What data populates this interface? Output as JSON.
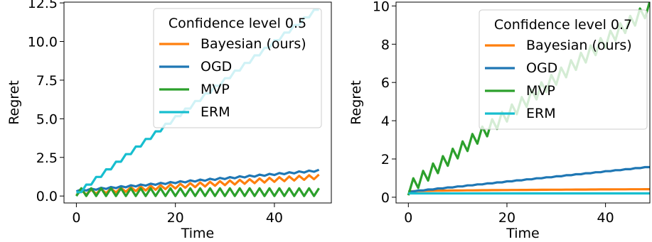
{
  "chart_data": [
    {
      "type": "line",
      "title": "",
      "xlabel": "Time",
      "ylabel": "Regret",
      "xlim": [
        -2.5,
        51.5
      ],
      "ylim": [
        -0.45,
        12.55
      ],
      "xticks": [
        0,
        20,
        40
      ],
      "xtick_labels": [
        "0",
        "20",
        "40"
      ],
      "yticks": [
        0,
        2.5,
        5,
        7.5,
        10,
        12.5
      ],
      "ytick_labels": [
        "0.0",
        "2.5",
        "5.0",
        "7.5",
        "10.0",
        "12.5"
      ],
      "grid": false,
      "legend": {
        "title": "Confidence level 0.5",
        "placement": "upper-right"
      },
      "series": [
        {
          "name": "Bayesian (ours)",
          "color": "#ff7f0e",
          "pattern": "zigzag",
          "start": 0.2,
          "end": 1.25,
          "amplitude": 0.14
        },
        {
          "name": "OGD",
          "color": "#1f77b4",
          "pattern": "zigzag",
          "start": 0.35,
          "end": 1.65,
          "amplitude": 0.05
        },
        {
          "name": "MVP",
          "color": "#2ca02c",
          "pattern": "zigzag",
          "start": 0.25,
          "end": 0.25,
          "amplitude": 0.25
        },
        {
          "name": "ERM",
          "color": "#17becf",
          "pattern": "staircase",
          "start": 0.25,
          "end": 12.3,
          "amplitude": 0
        }
      ]
    },
    {
      "type": "line",
      "title": "",
      "xlabel": "Time",
      "ylabel": "Regret",
      "xlim": [
        -2.5,
        49
      ],
      "ylim": [
        -0.3,
        10.2
      ],
      "xticks": [
        0,
        20,
        40
      ],
      "xtick_labels": [
        "0",
        "20",
        "40"
      ],
      "yticks": [
        0,
        2,
        4,
        6,
        8,
        10
      ],
      "ytick_labels": [
        "0",
        "2",
        "4",
        "6",
        "8",
        "10"
      ],
      "grid": false,
      "legend": {
        "title": "Confidence level 0.7",
        "placement": "upper-right"
      },
      "series": [
        {
          "name": "Bayesian (ours)",
          "color": "#ff7f0e",
          "pattern": "smooth",
          "start": 0.3,
          "end": 0.42,
          "amplitude": 0
        },
        {
          "name": "OGD",
          "color": "#1f77b4",
          "pattern": "staircase",
          "start": 0.3,
          "end": 1.6,
          "amplitude": 0
        },
        {
          "name": "MVP",
          "color": "#2ca02c",
          "pattern": "zigzag",
          "start": 0.45,
          "end": 9.9,
          "amplitude": 0.35
        },
        {
          "name": "ERM",
          "color": "#17becf",
          "pattern": "flat",
          "start": 0.2,
          "end": 0.2,
          "amplitude": 0
        }
      ]
    }
  ]
}
